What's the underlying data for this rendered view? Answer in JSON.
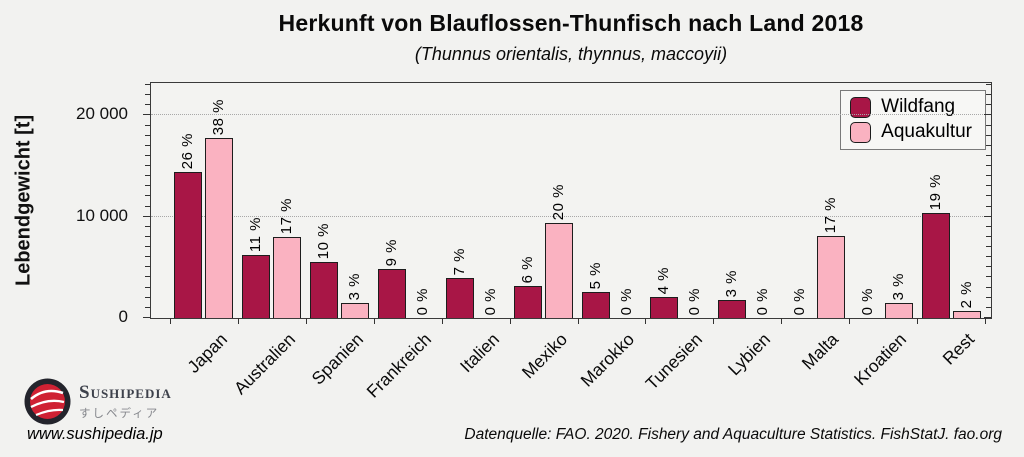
{
  "header": {
    "title": "Herkunft von Blauflossen-Thunfisch nach Land 2018",
    "subtitle": "(Thunnus orientalis, thynnus, maccoyii)"
  },
  "colors": {
    "wildfang": "#a81646",
    "aquakultur": "#fab2c1",
    "background": "#f2f2f0"
  },
  "chart_data": {
    "type": "bar",
    "title": "Herkunft von Blauflossen-Thunfisch nach Land 2018",
    "subtitle": "(Thunnus orientalis, thynnus, maccoyii)",
    "xlabel": "",
    "ylabel": "Lebendgewicht [t]",
    "ylim": [
      0,
      23200
    ],
    "ytick_values": [
      0,
      10000,
      20000
    ],
    "ytick_labels": [
      "0",
      "10 000",
      "20 000"
    ],
    "minor_tick_step": 1000,
    "gridline_values": [
      10000,
      20000
    ],
    "grid": "dotted horizontal at major ticks",
    "legend_position": "top-right",
    "categories": [
      "Japan",
      "Australien",
      "Spanien",
      "Frankreich",
      "Italien",
      "Mexiko",
      "Marokko",
      "Tunesien",
      "Lybien",
      "Malta",
      "Kroatien",
      "Rest"
    ],
    "series": [
      {
        "name": "Wildfang",
        "color": "#a81646",
        "values": [
          14400,
          6200,
          5500,
          4800,
          3900,
          3200,
          2600,
          2100,
          1800,
          0,
          0,
          10400
        ],
        "pct_labels": [
          "26 %",
          "11 %",
          "10 %",
          "9 %",
          "7 %",
          "6 %",
          "5 %",
          "4 %",
          "3 %",
          "0 %",
          "0 %",
          "19 %"
        ]
      },
      {
        "name": "Aquakultur",
        "color": "#fab2c1",
        "values": [
          17800,
          8000,
          1500,
          0,
          0,
          9400,
          0,
          0,
          0,
          8100,
          1500,
          700
        ],
        "pct_labels": [
          "38 %",
          "17 %",
          "3 %",
          "0 %",
          "0 %",
          "20 %",
          "0 %",
          "0 %",
          "0 %",
          "17 %",
          "3 %",
          "2 %"
        ]
      }
    ]
  },
  "footer": {
    "source": "Datenquelle: FAO. 2020. Fishery and Aquaculture Statistics. FishStatJ. fao.org",
    "logo": {
      "name": "Sushipedia",
      "name_jp": "すしペディア",
      "url": "www.sushipedia.jp"
    }
  }
}
